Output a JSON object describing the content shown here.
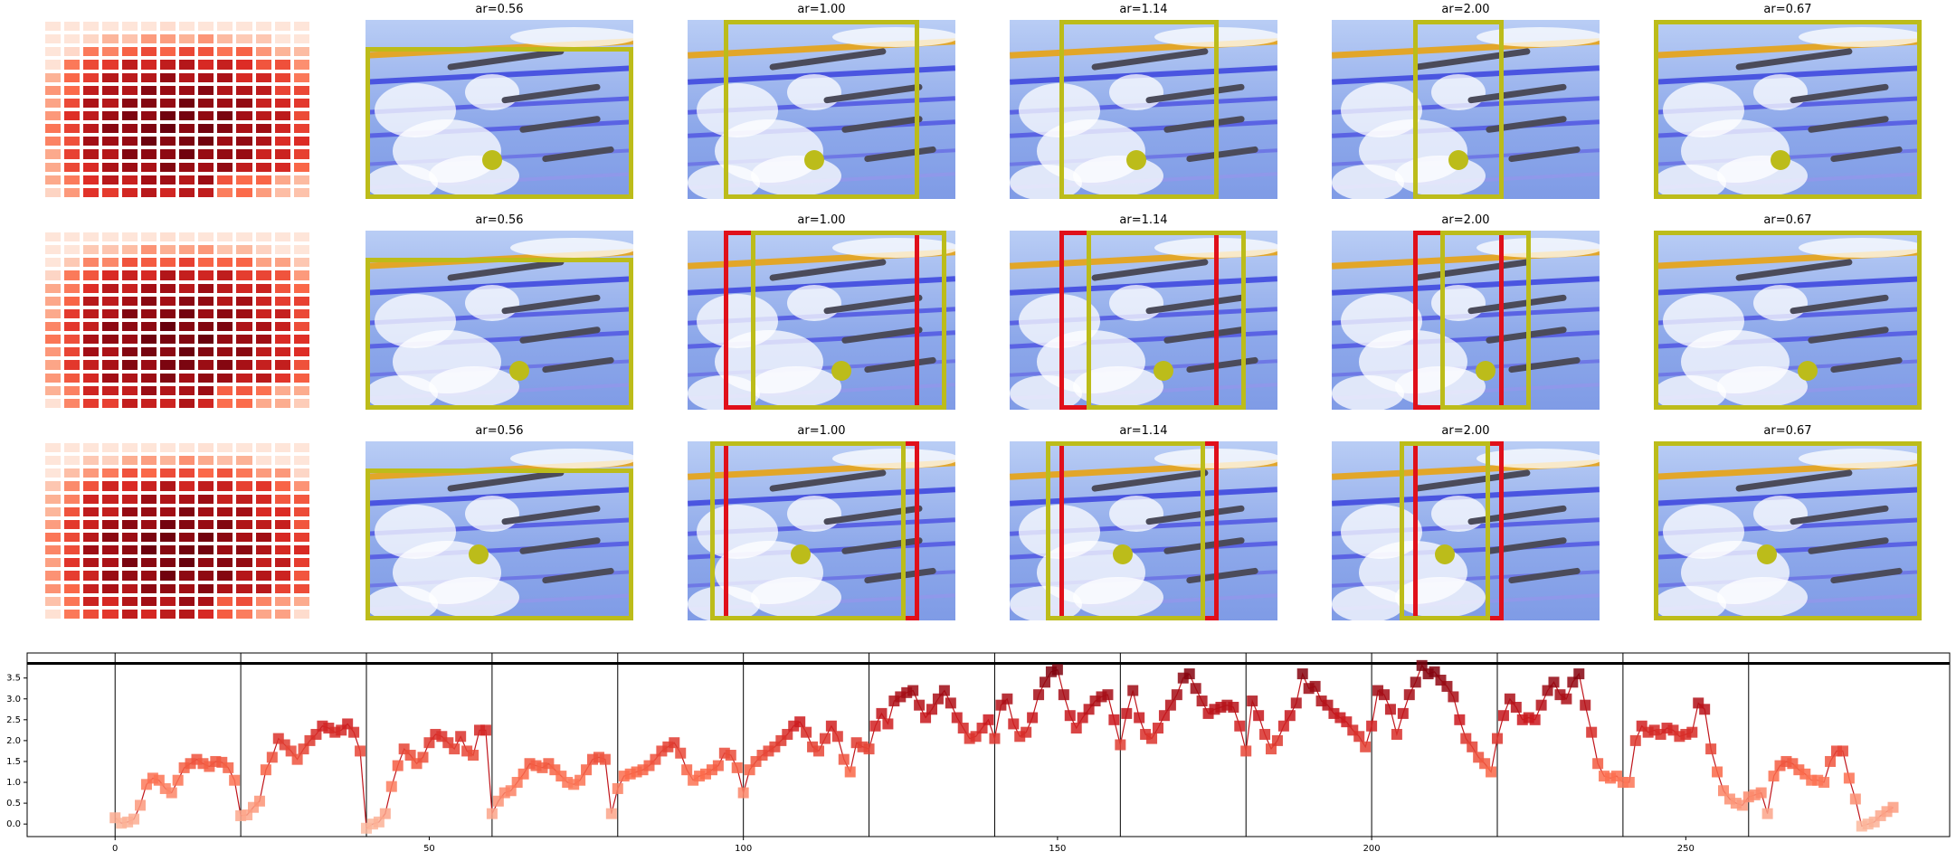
{
  "colors": {
    "box_yellow": "#bcbc1a",
    "box_red": "#e0101a",
    "line": "#c0151b",
    "axis": "#000000"
  },
  "panel_titles": [
    "ar=0.56",
    "ar=1.00",
    "ar=1.14",
    "ar=2.00",
    "ar=0.67"
  ],
  "rows": [
    {
      "titles": [
        "ar=0.56",
        "ar=1.00",
        "ar=1.14",
        "ar=2.00",
        "ar=0.67"
      ]
    },
    {
      "titles": [
        "ar=0.56",
        "ar=1.00",
        "ar=1.14",
        "ar=2.00",
        "ar=0.67"
      ]
    },
    {
      "titles": [
        "ar=0.56",
        "ar=1.00",
        "ar=1.14",
        "ar=2.00",
        "ar=0.67"
      ]
    }
  ],
  "chart_data": {
    "type": "line",
    "x_ticks": [
      "0",
      "50",
      "100",
      "150",
      "200",
      "250"
    ],
    "y_ticks": [
      "0.0",
      "0.5",
      "1.0",
      "1.5",
      "2.0",
      "2.5",
      "3.0",
      "3.5"
    ],
    "xlim": [
      -14,
      292
    ],
    "ylim": [
      -0.3,
      4.1
    ],
    "reference_line_y": 3.85,
    "vertical_lines_x": [
      0,
      20,
      40,
      60,
      80,
      100,
      120,
      140,
      160,
      180,
      200,
      220,
      240,
      260
    ],
    "series": [
      {
        "values": [
          0.15,
          0.02,
          0.05,
          0.12,
          0.45,
          0.95,
          1.1,
          1.05,
          0.85,
          0.75,
          1.05,
          1.35,
          1.45,
          1.55,
          1.45,
          1.38,
          1.5,
          1.48,
          1.35,
          1.05,
          0.2,
          0.22,
          0.4,
          0.55,
          1.3,
          1.6,
          2.05,
          1.9,
          1.75,
          1.55,
          1.8,
          2.0,
          2.15,
          2.35,
          2.3,
          2.2,
          2.25,
          2.4,
          2.2,
          1.75,
          -0.1,
          0.0,
          0.05,
          0.25,
          0.9,
          1.4,
          1.8,
          1.65,
          1.45,
          1.6,
          1.95,
          2.15,
          2.1,
          1.95,
          1.8,
          2.1,
          1.75,
          1.65,
          2.25,
          2.25,
          0.25,
          0.55,
          0.75,
          0.8,
          1.0,
          1.2,
          1.45,
          1.4,
          1.35,
          1.45,
          1.3,
          1.15,
          1.0,
          0.95,
          1.05,
          1.3,
          1.55,
          1.6,
          1.55,
          0.25,
          0.85,
          1.15,
          1.2,
          1.25,
          1.3,
          1.4,
          1.55,
          1.75,
          1.85,
          1.95,
          1.7,
          1.3,
          1.05,
          1.15,
          1.2,
          1.3,
          1.4,
          1.7,
          1.65,
          1.35,
          0.75,
          1.3,
          1.5,
          1.65,
          1.75,
          1.85,
          2.0,
          2.15,
          2.35,
          2.45,
          2.2,
          1.85,
          1.75,
          2.05,
          2.35,
          2.1,
          1.55,
          1.25,
          1.95,
          1.85,
          1.8,
          2.35,
          2.65,
          2.4,
          2.95,
          3.05,
          3.15,
          3.2,
          2.85,
          2.55,
          2.75,
          3.0,
          3.2,
          2.9,
          2.55,
          2.3,
          2.05,
          2.1,
          2.3,
          2.5,
          2.05,
          2.85,
          3.0,
          2.4,
          2.1,
          2.2,
          2.55,
          3.1,
          3.4,
          3.65,
          3.7,
          3.1,
          2.6,
          2.3,
          2.55,
          2.75,
          2.95,
          3.05,
          3.1,
          2.5,
          1.9,
          2.65,
          3.2,
          2.55,
          2.15,
          2.05,
          2.3,
          2.6,
          2.85,
          3.1,
          3.5,
          3.6,
          3.25,
          2.95,
          2.65,
          2.75,
          2.8,
          2.85,
          2.8,
          2.35,
          1.75,
          2.95,
          2.6,
          2.15,
          1.8,
          2.0,
          2.35,
          2.6,
          2.9,
          3.6,
          3.25,
          3.3,
          2.95,
          2.85,
          2.65,
          2.55,
          2.45,
          2.25,
          2.1,
          1.85,
          2.35,
          3.2,
          3.1,
          2.75,
          2.15,
          2.65,
          3.1,
          3.4,
          3.8,
          3.6,
          3.65,
          3.45,
          3.3,
          3.05,
          2.5,
          2.05,
          1.85,
          1.6,
          1.45,
          1.25,
          2.05,
          2.6,
          3.0,
          2.8,
          2.5,
          2.55,
          2.5,
          2.85,
          3.2,
          3.4,
          3.1,
          3.0,
          3.4,
          3.6,
          2.85,
          2.2,
          1.45,
          1.15,
          1.1,
          1.15,
          1.0,
          1.0,
          2.0,
          2.35,
          2.2,
          2.25,
          2.15,
          2.3,
          2.25,
          2.1,
          2.15,
          2.2,
          2.9,
          2.75,
          1.8,
          1.25,
          0.8,
          0.6,
          0.5,
          0.45,
          0.65,
          0.7,
          0.75,
          0.25,
          1.15,
          1.4,
          1.5,
          1.45,
          1.3,
          1.2,
          1.05,
          1.05,
          1.0,
          1.5,
          1.75,
          1.75,
          1.1,
          0.6,
          -0.05,
          0.0,
          0.05,
          0.2,
          0.3,
          0.4
        ]
      }
    ]
  }
}
